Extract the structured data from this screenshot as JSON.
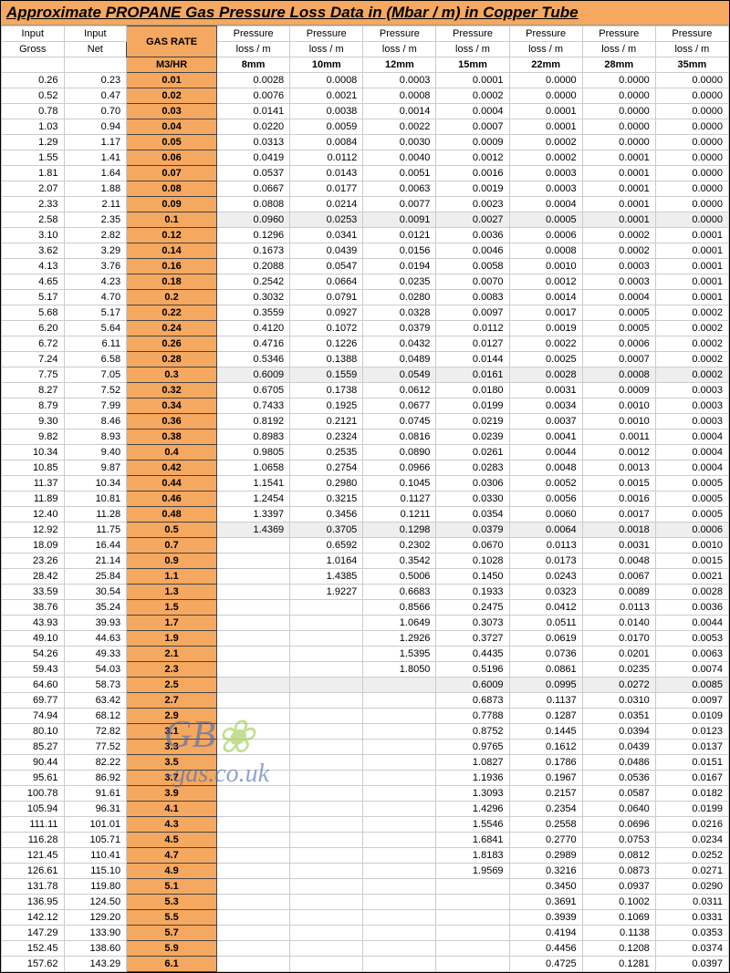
{
  "title": "Approximate PROPANE Gas Pressure Loss Data in (Mbar / m) in Copper Tube",
  "columns": {
    "input_gross": "Input Gross",
    "input_net": "Input Net",
    "gas_rate": "GAS RATE",
    "gas_rate_unit": "M3/HR",
    "pressure": "Pressure",
    "loss": "loss / m",
    "sizes": [
      "8mm",
      "10mm",
      "12mm",
      "15mm",
      "22mm",
      "28mm",
      "35mm"
    ]
  },
  "watermark": {
    "line1": "GB",
    "line2": "-gas.co.uk"
  },
  "rows": [
    {
      "g": "0.26",
      "n": "0.23",
      "r": "0.01",
      "v": [
        "0.0028",
        "0.0008",
        "0.0003",
        "0.0001",
        "0.0000",
        "0.0000",
        "0.0000"
      ]
    },
    {
      "g": "0.52",
      "n": "0.47",
      "r": "0.02",
      "v": [
        "0.0076",
        "0.0021",
        "0.0008",
        "0.0002",
        "0.0000",
        "0.0000",
        "0.0000"
      ]
    },
    {
      "g": "0.78",
      "n": "0.70",
      "r": "0.03",
      "v": [
        "0.0141",
        "0.0038",
        "0.0014",
        "0.0004",
        "0.0001",
        "0.0000",
        "0.0000"
      ]
    },
    {
      "g": "1.03",
      "n": "0.94",
      "r": "0.04",
      "v": [
        "0.0220",
        "0.0059",
        "0.0022",
        "0.0007",
        "0.0001",
        "0.0000",
        "0.0000"
      ]
    },
    {
      "g": "1.29",
      "n": "1.17",
      "r": "0.05",
      "v": [
        "0.0313",
        "0.0084",
        "0.0030",
        "0.0009",
        "0.0002",
        "0.0000",
        "0.0000"
      ]
    },
    {
      "g": "1.55",
      "n": "1.41",
      "r": "0.06",
      "v": [
        "0.0419",
        "0.0112",
        "0.0040",
        "0.0012",
        "0.0002",
        "0.0001",
        "0.0000"
      ]
    },
    {
      "g": "1.81",
      "n": "1.64",
      "r": "0.07",
      "v": [
        "0.0537",
        "0.0143",
        "0.0051",
        "0.0016",
        "0.0003",
        "0.0001",
        "0.0000"
      ]
    },
    {
      "g": "2.07",
      "n": "1.88",
      "r": "0.08",
      "v": [
        "0.0667",
        "0.0177",
        "0.0063",
        "0.0019",
        "0.0003",
        "0.0001",
        "0.0000"
      ]
    },
    {
      "g": "2.33",
      "n": "2.11",
      "r": "0.09",
      "v": [
        "0.0808",
        "0.0214",
        "0.0077",
        "0.0023",
        "0.0004",
        "0.0001",
        "0.0000"
      ]
    },
    {
      "g": "2.58",
      "n": "2.35",
      "r": "0.1",
      "v": [
        "0.0960",
        "0.0253",
        "0.0091",
        "0.0027",
        "0.0005",
        "0.0001",
        "0.0000"
      ],
      "shade": true
    },
    {
      "g": "3.10",
      "n": "2.82",
      "r": "0.12",
      "v": [
        "0.1296",
        "0.0341",
        "0.0121",
        "0.0036",
        "0.0006",
        "0.0002",
        "0.0001"
      ]
    },
    {
      "g": "3.62",
      "n": "3.29",
      "r": "0.14",
      "v": [
        "0.1673",
        "0.0439",
        "0.0156",
        "0.0046",
        "0.0008",
        "0.0002",
        "0.0001"
      ]
    },
    {
      "g": "4.13",
      "n": "3.76",
      "r": "0.16",
      "v": [
        "0.2088",
        "0.0547",
        "0.0194",
        "0.0058",
        "0.0010",
        "0.0003",
        "0.0001"
      ]
    },
    {
      "g": "4.65",
      "n": "4.23",
      "r": "0.18",
      "v": [
        "0.2542",
        "0.0664",
        "0.0235",
        "0.0070",
        "0.0012",
        "0.0003",
        "0.0001"
      ]
    },
    {
      "g": "5.17",
      "n": "4.70",
      "r": "0.2",
      "v": [
        "0.3032",
        "0.0791",
        "0.0280",
        "0.0083",
        "0.0014",
        "0.0004",
        "0.0001"
      ]
    },
    {
      "g": "5.68",
      "n": "5.17",
      "r": "0.22",
      "v": [
        "0.3559",
        "0.0927",
        "0.0328",
        "0.0097",
        "0.0017",
        "0.0005",
        "0.0002"
      ]
    },
    {
      "g": "6.20",
      "n": "5.64",
      "r": "0.24",
      "v": [
        "0.4120",
        "0.1072",
        "0.0379",
        "0.0112",
        "0.0019",
        "0.0005",
        "0.0002"
      ]
    },
    {
      "g": "6.72",
      "n": "6.11",
      "r": "0.26",
      "v": [
        "0.4716",
        "0.1226",
        "0.0432",
        "0.0127",
        "0.0022",
        "0.0006",
        "0.0002"
      ]
    },
    {
      "g": "7.24",
      "n": "6.58",
      "r": "0.28",
      "v": [
        "0.5346",
        "0.1388",
        "0.0489",
        "0.0144",
        "0.0025",
        "0.0007",
        "0.0002"
      ]
    },
    {
      "g": "7.75",
      "n": "7.05",
      "r": "0.3",
      "v": [
        "0.6009",
        "0.1559",
        "0.0549",
        "0.0161",
        "0.0028",
        "0.0008",
        "0.0002"
      ],
      "shade": true
    },
    {
      "g": "8.27",
      "n": "7.52",
      "r": "0.32",
      "v": [
        "0.6705",
        "0.1738",
        "0.0612",
        "0.0180",
        "0.0031",
        "0.0009",
        "0.0003"
      ]
    },
    {
      "g": "8.79",
      "n": "7.99",
      "r": "0.34",
      "v": [
        "0.7433",
        "0.1925",
        "0.0677",
        "0.0199",
        "0.0034",
        "0.0010",
        "0.0003"
      ]
    },
    {
      "g": "9.30",
      "n": "8.46",
      "r": "0.36",
      "v": [
        "0.8192",
        "0.2121",
        "0.0745",
        "0.0219",
        "0.0037",
        "0.0010",
        "0.0003"
      ]
    },
    {
      "g": "9.82",
      "n": "8.93",
      "r": "0.38",
      "v": [
        "0.8983",
        "0.2324",
        "0.0816",
        "0.0239",
        "0.0041",
        "0.0011",
        "0.0004"
      ]
    },
    {
      "g": "10.34",
      "n": "9.40",
      "r": "0.4",
      "v": [
        "0.9805",
        "0.2535",
        "0.0890",
        "0.0261",
        "0.0044",
        "0.0012",
        "0.0004"
      ]
    },
    {
      "g": "10.85",
      "n": "9.87",
      "r": "0.42",
      "v": [
        "1.0658",
        "0.2754",
        "0.0966",
        "0.0283",
        "0.0048",
        "0.0013",
        "0.0004"
      ]
    },
    {
      "g": "11.37",
      "n": "10.34",
      "r": "0.44",
      "v": [
        "1.1541",
        "0.2980",
        "0.1045",
        "0.0306",
        "0.0052",
        "0.0015",
        "0.0005"
      ]
    },
    {
      "g": "11.89",
      "n": "10.81",
      "r": "0.46",
      "v": [
        "1.2454",
        "0.3215",
        "0.1127",
        "0.0330",
        "0.0056",
        "0.0016",
        "0.0005"
      ]
    },
    {
      "g": "12.40",
      "n": "11.28",
      "r": "0.48",
      "v": [
        "1.3397",
        "0.3456",
        "0.1211",
        "0.0354",
        "0.0060",
        "0.0017",
        "0.0005"
      ]
    },
    {
      "g": "12.92",
      "n": "11.75",
      "r": "0.5",
      "v": [
        "1.4369",
        "0.3705",
        "0.1298",
        "0.0379",
        "0.0064",
        "0.0018",
        "0.0006"
      ],
      "shade": true
    },
    {
      "g": "18.09",
      "n": "16.44",
      "r": "0.7",
      "v": [
        "",
        "0.6592",
        "0.2302",
        "0.0670",
        "0.0113",
        "0.0031",
        "0.0010"
      ]
    },
    {
      "g": "23.26",
      "n": "21.14",
      "r": "0.9",
      "v": [
        "",
        "1.0164",
        "0.3542",
        "0.1028",
        "0.0173",
        "0.0048",
        "0.0015"
      ]
    },
    {
      "g": "28.42",
      "n": "25.84",
      "r": "1.1",
      "v": [
        "",
        "1.4385",
        "0.5006",
        "0.1450",
        "0.0243",
        "0.0067",
        "0.0021"
      ]
    },
    {
      "g": "33.59",
      "n": "30.54",
      "r": "1.3",
      "v": [
        "",
        "1.9227",
        "0.6683",
        "0.1933",
        "0.0323",
        "0.0089",
        "0.0028"
      ]
    },
    {
      "g": "38.76",
      "n": "35.24",
      "r": "1.5",
      "v": [
        "",
        "",
        "0.8566",
        "0.2475",
        "0.0412",
        "0.0113",
        "0.0036"
      ]
    },
    {
      "g": "43.93",
      "n": "39.93",
      "r": "1.7",
      "v": [
        "",
        "",
        "1.0649",
        "0.3073",
        "0.0511",
        "0.0140",
        "0.0044"
      ]
    },
    {
      "g": "49.10",
      "n": "44.63",
      "r": "1.9",
      "v": [
        "",
        "",
        "1.2926",
        "0.3727",
        "0.0619",
        "0.0170",
        "0.0053"
      ]
    },
    {
      "g": "54.26",
      "n": "49.33",
      "r": "2.1",
      "v": [
        "",
        "",
        "1.5395",
        "0.4435",
        "0.0736",
        "0.0201",
        "0.0063"
      ]
    },
    {
      "g": "59.43",
      "n": "54.03",
      "r": "2.3",
      "v": [
        "",
        "",
        "1.8050",
        "0.5196",
        "0.0861",
        "0.0235",
        "0.0074"
      ]
    },
    {
      "g": "64.60",
      "n": "58.73",
      "r": "2.5",
      "v": [
        "",
        "",
        "",
        "0.6009",
        "0.0995",
        "0.0272",
        "0.0085"
      ],
      "shade": true
    },
    {
      "g": "69.77",
      "n": "63.42",
      "r": "2.7",
      "v": [
        "",
        "",
        "",
        "0.6873",
        "0.1137",
        "0.0310",
        "0.0097"
      ]
    },
    {
      "g": "74.94",
      "n": "68.12",
      "r": "2.9",
      "v": [
        "",
        "",
        "",
        "0.7788",
        "0.1287",
        "0.0351",
        "0.0109"
      ]
    },
    {
      "g": "80.10",
      "n": "72.82",
      "r": "3.1",
      "v": [
        "",
        "",
        "",
        "0.8752",
        "0.1445",
        "0.0394",
        "0.0123"
      ]
    },
    {
      "g": "85.27",
      "n": "77.52",
      "r": "3.3",
      "v": [
        "",
        "",
        "",
        "0.9765",
        "0.1612",
        "0.0439",
        "0.0137"
      ]
    },
    {
      "g": "90.44",
      "n": "82.22",
      "r": "3.5",
      "v": [
        "",
        "",
        "",
        "1.0827",
        "0.1786",
        "0.0486",
        "0.0151"
      ]
    },
    {
      "g": "95.61",
      "n": "86.92",
      "r": "3.7",
      "v": [
        "",
        "",
        "",
        "1.1936",
        "0.1967",
        "0.0536",
        "0.0167"
      ]
    },
    {
      "g": "100.78",
      "n": "91.61",
      "r": "3.9",
      "v": [
        "",
        "",
        "",
        "1.3093",
        "0.2157",
        "0.0587",
        "0.0182"
      ]
    },
    {
      "g": "105.94",
      "n": "96.31",
      "r": "4.1",
      "v": [
        "",
        "",
        "",
        "1.4296",
        "0.2354",
        "0.0640",
        "0.0199"
      ]
    },
    {
      "g": "111.11",
      "n": "101.01",
      "r": "4.3",
      "v": [
        "",
        "",
        "",
        "1.5546",
        "0.2558",
        "0.0696",
        "0.0216"
      ]
    },
    {
      "g": "116.28",
      "n": "105.71",
      "r": "4.5",
      "v": [
        "",
        "",
        "",
        "1.6841",
        "0.2770",
        "0.0753",
        "0.0234"
      ]
    },
    {
      "g": "121.45",
      "n": "110.41",
      "r": "4.7",
      "v": [
        "",
        "",
        "",
        "1.8183",
        "0.2989",
        "0.0812",
        "0.0252"
      ]
    },
    {
      "g": "126.61",
      "n": "115.10",
      "r": "4.9",
      "v": [
        "",
        "",
        "",
        "1.9569",
        "0.3216",
        "0.0873",
        "0.0271"
      ]
    },
    {
      "g": "131.78",
      "n": "119.80",
      "r": "5.1",
      "v": [
        "",
        "",
        "",
        "",
        "0.3450",
        "0.0937",
        "0.0290"
      ]
    },
    {
      "g": "136.95",
      "n": "124.50",
      "r": "5.3",
      "v": [
        "",
        "",
        "",
        "",
        "0.3691",
        "0.1002",
        "0.0311"
      ]
    },
    {
      "g": "142.12",
      "n": "129.20",
      "r": "5.5",
      "v": [
        "",
        "",
        "",
        "",
        "0.3939",
        "0.1069",
        "0.0331"
      ]
    },
    {
      "g": "147.29",
      "n": "133.90",
      "r": "5.7",
      "v": [
        "",
        "",
        "",
        "",
        "0.4194",
        "0.1138",
        "0.0353"
      ]
    },
    {
      "g": "152.45",
      "n": "138.60",
      "r": "5.9",
      "v": [
        "",
        "",
        "",
        "",
        "0.4456",
        "0.1208",
        "0.0374"
      ]
    },
    {
      "g": "157.62",
      "n": "143.29",
      "r": "6.1",
      "v": [
        "",
        "",
        "",
        "",
        "0.4725",
        "0.1281",
        "0.0397"
      ]
    }
  ],
  "style": {
    "title_bg": "#f5a85f",
    "gasrate_bg": "#f5a85f",
    "shade_bg": "#eeeeee",
    "border": "#cccccc",
    "font_size": 11
  }
}
